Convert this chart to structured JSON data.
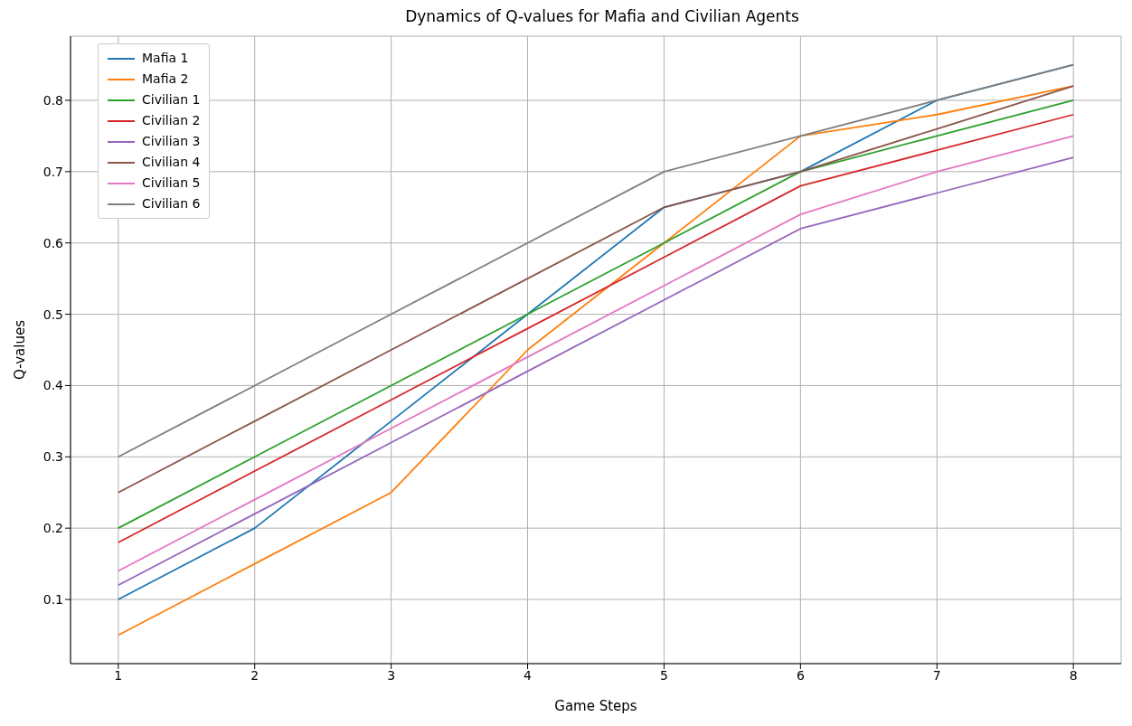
{
  "chart_data": {
    "type": "line",
    "title": "Dynamics of Q-values for Mafia and Civilian Agents",
    "xlabel": "Game Steps",
    "ylabel": "Q-values",
    "x": [
      1,
      2,
      3,
      4,
      5,
      6,
      7,
      8
    ],
    "series": [
      {
        "name": "Mafia 1",
        "color": "#1f77b4",
        "values": [
          0.1,
          0.2,
          0.35,
          0.5,
          0.65,
          0.7,
          0.8,
          0.85
        ]
      },
      {
        "name": "Mafia 2",
        "color": "#ff7f0e",
        "values": [
          0.05,
          0.15,
          0.25,
          0.45,
          0.6,
          0.75,
          0.78,
          0.82
        ]
      },
      {
        "name": "Civilian 1",
        "color": "#2ca02c",
        "values": [
          0.2,
          0.3,
          0.4,
          0.5,
          0.6,
          0.7,
          0.75,
          0.8
        ]
      },
      {
        "name": "Civilian 2",
        "color": "#d62728",
        "values": [
          0.18,
          0.28,
          0.38,
          0.48,
          0.58,
          0.68,
          0.73,
          0.78
        ]
      },
      {
        "name": "Civilian 3",
        "color": "#9467bd",
        "values": [
          0.12,
          0.22,
          0.32,
          0.42,
          0.52,
          0.62,
          0.67,
          0.72
        ]
      },
      {
        "name": "Civilian 4",
        "color": "#8c564b",
        "values": [
          0.25,
          0.35,
          0.45,
          0.55,
          0.65,
          0.7,
          0.76,
          0.82
        ]
      },
      {
        "name": "Civilian 5",
        "color": "#e377c2",
        "values": [
          0.14,
          0.24,
          0.34,
          0.44,
          0.54,
          0.64,
          0.7,
          0.75
        ]
      },
      {
        "name": "Civilian 6",
        "color": "#7f7f7f",
        "values": [
          0.3,
          0.4,
          0.5,
          0.6,
          0.7,
          0.75,
          0.8,
          0.85
        ]
      }
    ],
    "xlim": [
      0.65,
      8.35
    ],
    "xticks": [
      1,
      2,
      3,
      4,
      5,
      6,
      7,
      8
    ],
    "ylim": [
      0.01,
      0.89
    ],
    "yticks": [
      0.1,
      0.2,
      0.3,
      0.4,
      0.5,
      0.6,
      0.7,
      0.8
    ],
    "grid": true,
    "legend": "top left",
    "marker": "none",
    "line_style": "solid"
  }
}
